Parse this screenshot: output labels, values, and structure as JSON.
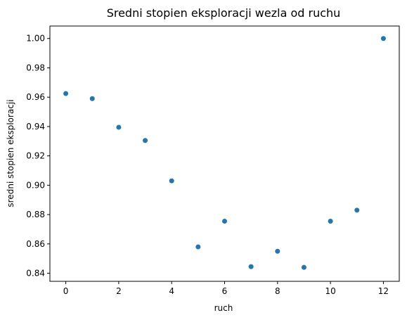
{
  "chart_data": {
    "type": "scatter",
    "title": "Sredni stopien eksploracji wezla od ruchu",
    "xlabel": "ruch",
    "ylabel": "sredni stopien eksploracji",
    "x_ticks": [
      "0",
      "2",
      "4",
      "6",
      "8",
      "10",
      "12"
    ],
    "y_ticks": [
      "0.84",
      "0.86",
      "0.88",
      "0.90",
      "0.92",
      "0.94",
      "0.96",
      "0.98",
      "1.00"
    ],
    "xlim": [
      -0.6,
      12.6
    ],
    "ylim": [
      0.8345,
      1.0085
    ],
    "grid": false,
    "marker_color": "#1f77b4",
    "series": [
      {
        "x": [
          0,
          1,
          2,
          3,
          4,
          5,
          6,
          7,
          8,
          9,
          10,
          11,
          12
        ],
        "y": [
          0.9625,
          0.959,
          0.9395,
          0.9305,
          0.903,
          0.858,
          0.8755,
          0.8445,
          0.855,
          0.844,
          0.8755,
          0.883,
          1.0
        ]
      }
    ]
  }
}
